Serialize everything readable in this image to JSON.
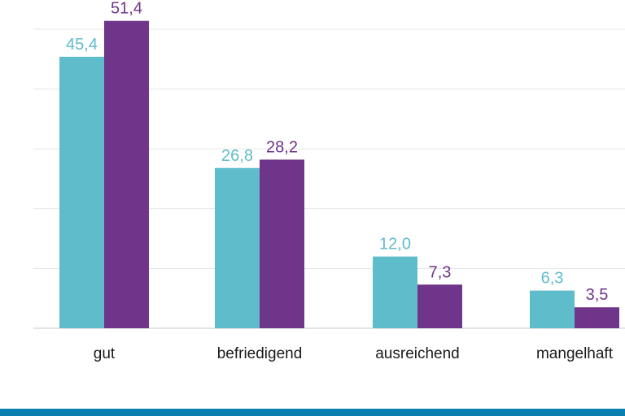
{
  "chart_data": {
    "type": "bar",
    "categories": [
      "gut",
      "befriedigend",
      "ausreichend",
      "mangelhaft"
    ],
    "series": [
      {
        "values": [
          45.4,
          26.8,
          12.0,
          6.3
        ],
        "labels": [
          "45,4",
          "26,8",
          "12,0",
          "6,3"
        ],
        "color": "#5fbcca"
      },
      {
        "values": [
          51.4,
          28.2,
          7.3,
          3.5
        ],
        "labels": [
          "51,4",
          "28,2",
          "7,3",
          "3,5"
        ],
        "color": "#6f358a"
      }
    ],
    "ylim": [
      0,
      50
    ],
    "gridlines": [
      0,
      10,
      20,
      30,
      40,
      50
    ],
    "grid": true,
    "ytick_labels_shown": false,
    "legend": "none"
  },
  "colors": {
    "grid": "#e4e4e4",
    "footer_strip": "#0a80b0",
    "text": "#1a1a1a"
  }
}
